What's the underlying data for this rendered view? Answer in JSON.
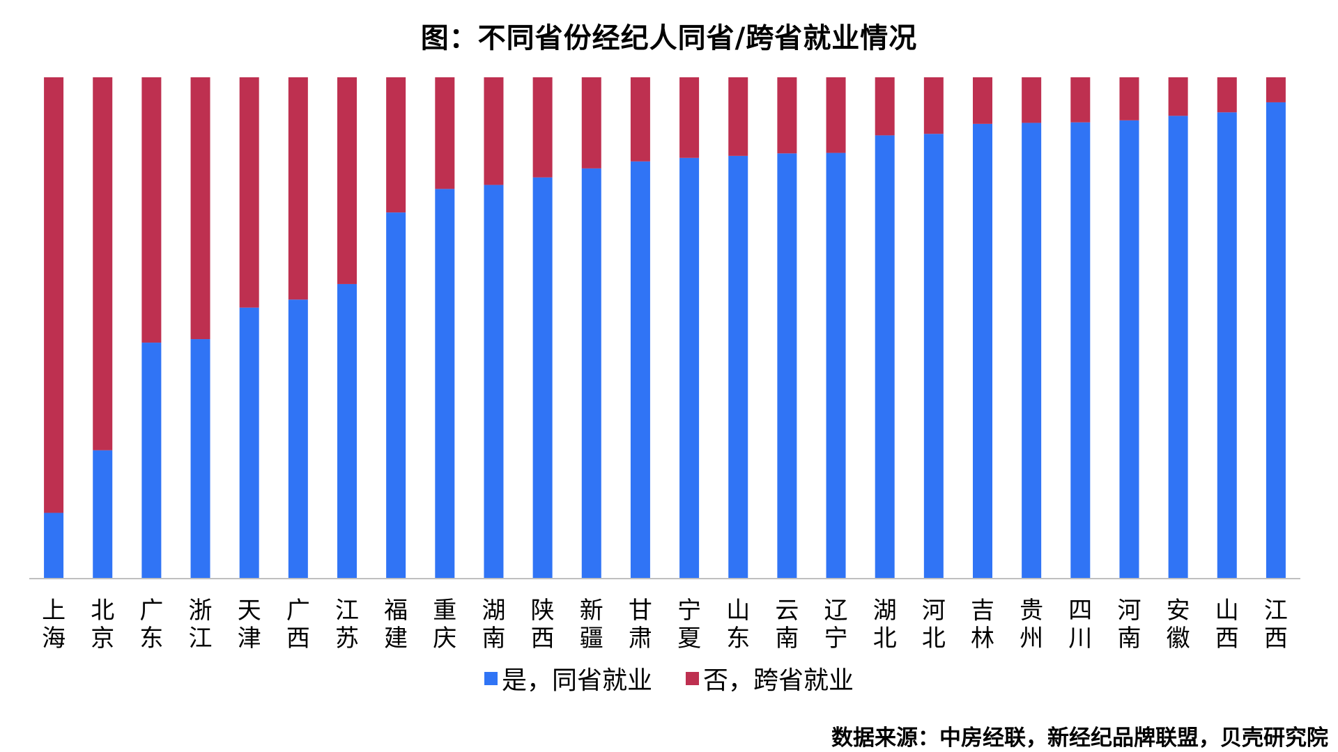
{
  "chart_data": {
    "type": "bar",
    "stacked": true,
    "title": "图：不同省份经纪人同省/跨省就业情况",
    "xlabel": "",
    "ylabel": "",
    "ylim": [
      0,
      100
    ],
    "grid": false,
    "legend_position": "bottom",
    "categories": [
      "上海",
      "北京",
      "广东",
      "浙江",
      "天津",
      "广西",
      "江苏",
      "福建",
      "重庆",
      "湖南",
      "陕西",
      "新疆",
      "甘肃",
      "宁夏",
      "山东",
      "云南",
      "辽宁",
      "湖北",
      "河北",
      "吉林",
      "贵州",
      "四川",
      "河南",
      "安徽",
      "山西",
      "江西"
    ],
    "series": [
      {
        "name": "是，同省就业",
        "color": "#3074F5",
        "values": [
          13,
          25.5,
          47,
          47.7,
          54,
          55.6,
          58.7,
          73,
          77.7,
          78.5,
          80,
          81.8,
          83.2,
          83.9,
          84.3,
          84.8,
          84.9,
          88.4,
          88.7,
          90.7,
          90.9,
          91,
          91.4,
          92.3,
          93,
          95
        ]
      },
      {
        "name": "否，跨省就业",
        "color": "#BE3050",
        "values": [
          87,
          74.5,
          53,
          52.3,
          46,
          44.4,
          41.3,
          27,
          22.3,
          21.5,
          20,
          18.2,
          16.8,
          16.1,
          15.7,
          15.2,
          15.1,
          11.6,
          11.3,
          9.3,
          9.1,
          9,
          8.6,
          7.7,
          7,
          5
        ]
      }
    ],
    "source": "数据来源：中房经联，新经纪品牌联盟，贝壳研究院"
  }
}
